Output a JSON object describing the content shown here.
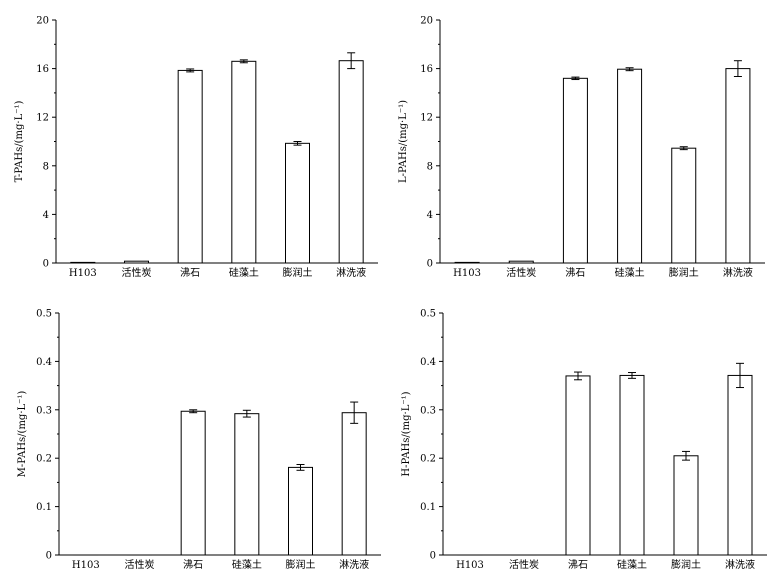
{
  "chart_data": [
    {
      "type": "bar",
      "ylabel": "T-PAHs/(mg·L⁻¹)",
      "categories": [
        "H103",
        "活性炭",
        "沸石",
        "硅藻土",
        "膨润土",
        "淋洗液"
      ],
      "values": [
        0.05,
        0.15,
        15.85,
        16.6,
        9.85,
        16.65
      ],
      "errors": [
        0.0,
        0.0,
        0.12,
        0.12,
        0.15,
        0.65
      ],
      "ylim": [
        0,
        20
      ],
      "yticks": [
        "0",
        "4",
        "8",
        "12",
        "16",
        "20"
      ],
      "grid": false
    },
    {
      "type": "bar",
      "ylabel": "L-PAHs/(mg·L⁻¹)",
      "categories": [
        "H103",
        "活性炭",
        "沸石",
        "硅藻土",
        "膨润土",
        "淋洗液"
      ],
      "values": [
        0.05,
        0.15,
        15.2,
        15.95,
        9.45,
        16.0
      ],
      "errors": [
        0.0,
        0.0,
        0.1,
        0.12,
        0.12,
        0.65
      ],
      "ylim": [
        0,
        20
      ],
      "yticks": [
        "0",
        "4",
        "8",
        "12",
        "16",
        "20"
      ],
      "grid": false
    },
    {
      "type": "bar",
      "ylabel": "M-PAHs/(mg·L⁻¹)",
      "categories": [
        "H103",
        "活性炭",
        "沸石",
        "硅藻土",
        "膨润土",
        "淋洗液"
      ],
      "values": [
        0.0,
        0.0,
        0.297,
        0.292,
        0.181,
        0.294
      ],
      "errors": [
        0.0,
        0.0,
        0.003,
        0.007,
        0.006,
        0.022
      ],
      "ylim": [
        0,
        0.5
      ],
      "yticks": [
        "0",
        "0.1",
        "0.2",
        "0.3",
        "0.4",
        "0.5"
      ],
      "grid": false
    },
    {
      "type": "bar",
      "ylabel": "H-PAHs/(mg·L⁻¹)",
      "categories": [
        "H103",
        "活性炭",
        "沸石",
        "硅藻土",
        "膨润土",
        "淋洗液"
      ],
      "values": [
        0.0,
        0.0,
        0.37,
        0.371,
        0.205,
        0.371
      ],
      "errors": [
        0.0,
        0.0,
        0.008,
        0.006,
        0.009,
        0.025
      ],
      "ylim": [
        0,
        0.5
      ],
      "yticks": [
        "0",
        "0.1",
        "0.2",
        "0.3",
        "0.4",
        "0.5"
      ],
      "grid": false
    }
  ]
}
